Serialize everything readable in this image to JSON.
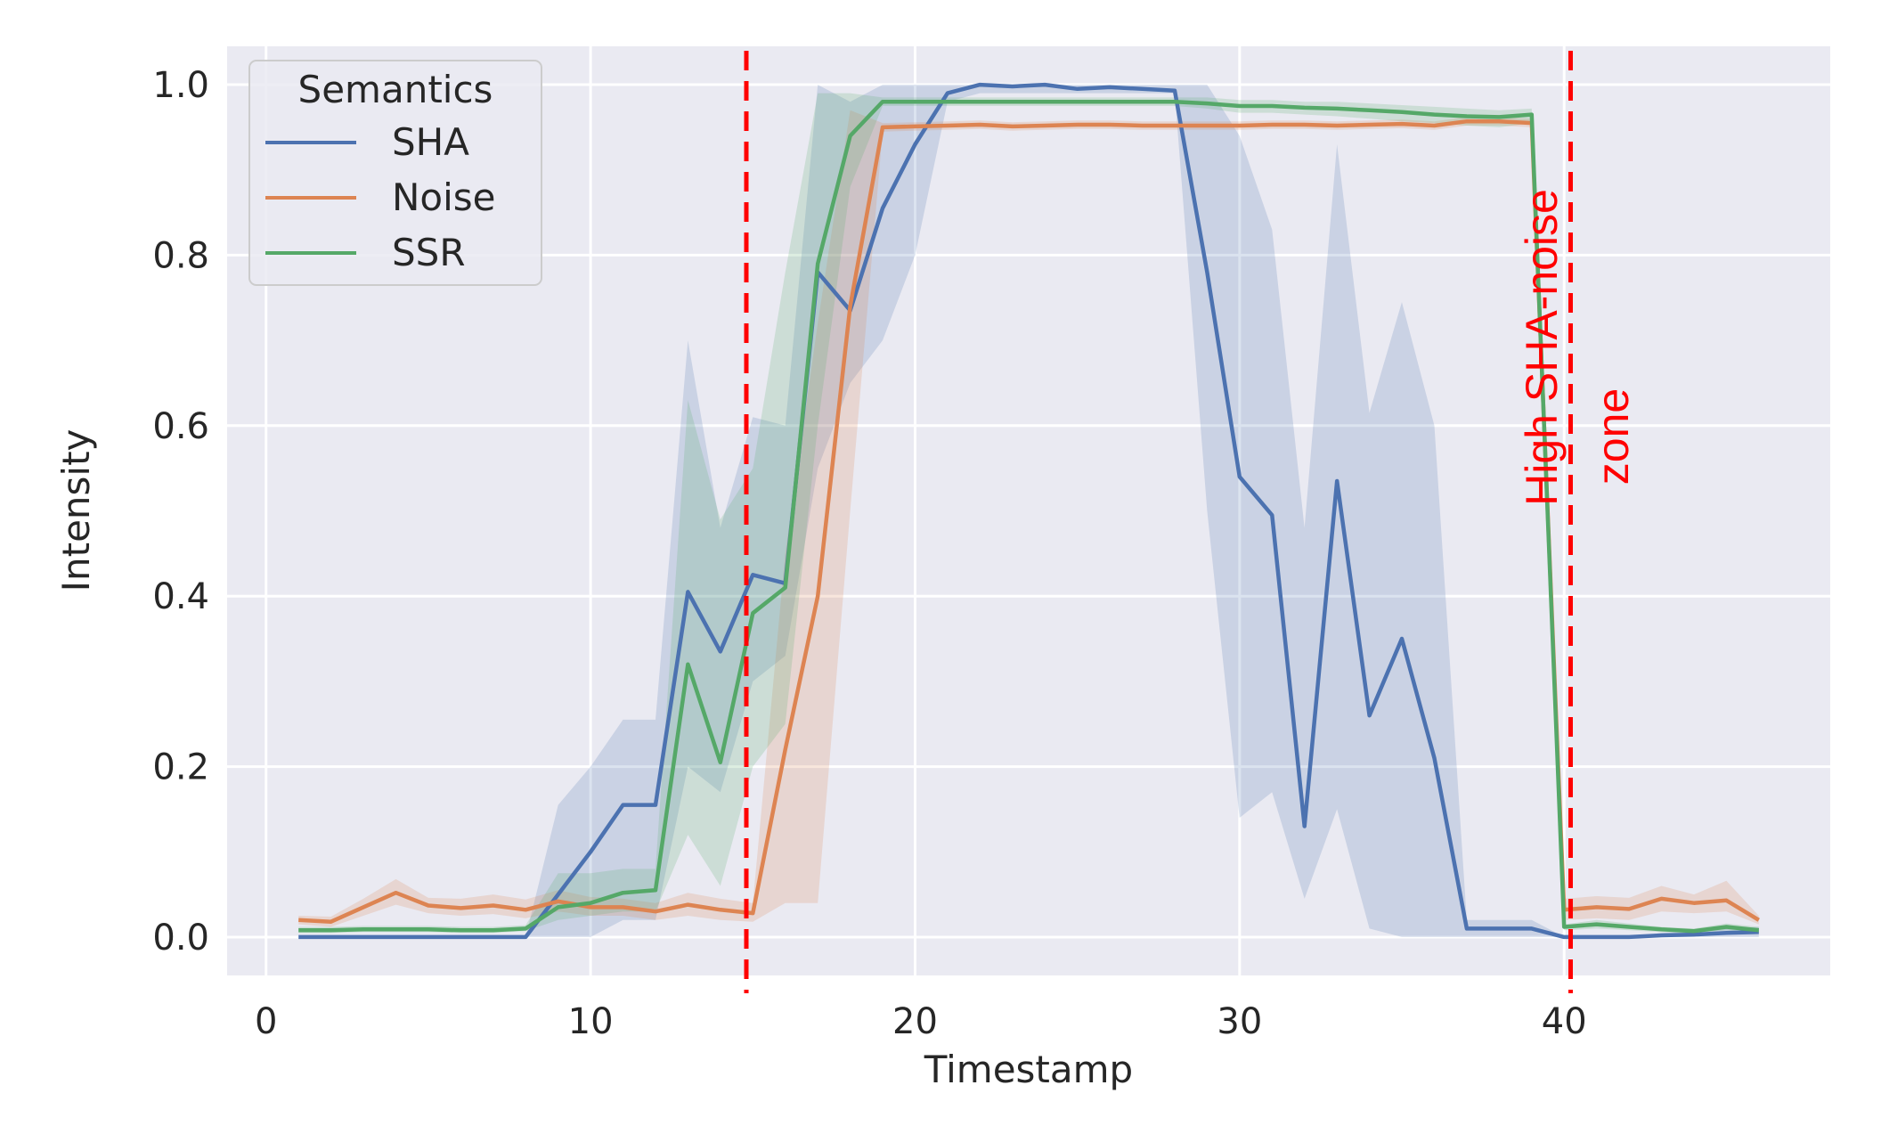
{
  "chart_data": {
    "type": "line",
    "title": "",
    "xlabel": "Timestamp",
    "ylabel": "Intensity",
    "xlim": [
      -1.2,
      48.2
    ],
    "ylim": [
      -0.045,
      1.045
    ],
    "x_ticks": [
      0,
      10,
      20,
      30,
      40
    ],
    "y_ticks": [
      0.0,
      0.2,
      0.4,
      0.6,
      0.8,
      1.0
    ],
    "x_tick_labels": [
      "0",
      "10",
      "20",
      "30",
      "40"
    ],
    "y_tick_labels": [
      "0.0",
      "0.2",
      "0.4",
      "0.6",
      "0.8",
      "1.0"
    ],
    "grid": true,
    "legend": {
      "title": "Semantics",
      "placement": "top-left"
    },
    "background_color": "#eaeaf2",
    "series": [
      {
        "name": "SHA",
        "color": "#4c72b0",
        "x": [
          1,
          2,
          3,
          4,
          5,
          6,
          7,
          8,
          9,
          10,
          11,
          12,
          13,
          14,
          15,
          16,
          17,
          18,
          19,
          20,
          21,
          22,
          23,
          24,
          25,
          26,
          27,
          28,
          29,
          30,
          31,
          32,
          33,
          34,
          35,
          36,
          37,
          38,
          39,
          40,
          41,
          42,
          43,
          44,
          45,
          46
        ],
        "y": [
          0.0,
          0.0,
          0.0,
          0.0,
          0.0,
          0.0,
          0.0,
          0.0,
          0.05,
          0.1,
          0.155,
          0.155,
          0.405,
          0.335,
          0.425,
          0.415,
          0.78,
          0.735,
          0.855,
          0.93,
          0.99,
          1.0,
          0.998,
          1.0,
          0.995,
          0.997,
          0.995,
          0.993,
          0.78,
          0.54,
          0.495,
          0.13,
          0.535,
          0.26,
          0.35,
          0.21,
          0.01,
          0.01,
          0.01,
          0.0,
          0.0,
          0.0,
          0.002,
          0.003,
          0.005,
          0.006
        ],
        "ci_lower": [
          0.0,
          0.0,
          0.0,
          0.0,
          0.0,
          0.0,
          0.0,
          0.0,
          0.0,
          0.0,
          0.02,
          0.02,
          0.2,
          0.17,
          0.3,
          0.33,
          0.55,
          0.65,
          0.7,
          0.8,
          0.98,
          0.99,
          0.99,
          0.99,
          0.99,
          0.99,
          0.99,
          0.99,
          0.5,
          0.14,
          0.17,
          0.045,
          0.15,
          0.01,
          0.0,
          0.0,
          0.0,
          0.0,
          0.0,
          0.0,
          0.0,
          0.0,
          0.0,
          0.0,
          0.0,
          0.0
        ],
        "ci_upper": [
          0.0,
          0.0,
          0.0,
          0.0,
          0.0,
          0.0,
          0.0,
          0.0,
          0.155,
          0.2,
          0.255,
          0.255,
          0.7,
          0.48,
          0.61,
          0.6,
          1.0,
          0.98,
          1.0,
          1.0,
          1.0,
          1.0,
          1.0,
          1.0,
          1.0,
          1.0,
          1.0,
          1.0,
          1.0,
          0.94,
          0.83,
          0.48,
          0.93,
          0.615,
          0.745,
          0.6,
          0.02,
          0.02,
          0.02,
          0.0,
          0.0,
          0.0,
          0.005,
          0.007,
          0.01,
          0.012
        ]
      },
      {
        "name": "Noise",
        "color": "#dd8452",
        "x": [
          1,
          2,
          3,
          4,
          5,
          6,
          7,
          8,
          9,
          10,
          11,
          12,
          13,
          14,
          15,
          16,
          17,
          18,
          19,
          20,
          21,
          22,
          23,
          24,
          25,
          26,
          27,
          28,
          29,
          30,
          31,
          32,
          33,
          34,
          35,
          36,
          37,
          38,
          39,
          40,
          41,
          42,
          43,
          44,
          45,
          46
        ],
        "y": [
          0.02,
          0.018,
          0.035,
          0.052,
          0.037,
          0.034,
          0.037,
          0.032,
          0.042,
          0.035,
          0.035,
          0.03,
          0.038,
          0.032,
          0.028,
          0.22,
          0.4,
          0.74,
          0.95,
          0.951,
          0.952,
          0.953,
          0.951,
          0.952,
          0.953,
          0.953,
          0.952,
          0.952,
          0.952,
          0.952,
          0.953,
          0.953,
          0.952,
          0.953,
          0.954,
          0.952,
          0.957,
          0.957,
          0.955,
          0.032,
          0.035,
          0.033,
          0.045,
          0.04,
          0.043,
          0.02
        ],
        "ci_lower": [
          0.015,
          0.012,
          0.025,
          0.038,
          0.028,
          0.025,
          0.027,
          0.022,
          0.03,
          0.025,
          0.025,
          0.02,
          0.025,
          0.02,
          0.018,
          0.04,
          0.04,
          0.5,
          0.945,
          0.946,
          0.947,
          0.948,
          0.946,
          0.947,
          0.948,
          0.948,
          0.947,
          0.947,
          0.947,
          0.947,
          0.948,
          0.948,
          0.947,
          0.948,
          0.949,
          0.947,
          0.952,
          0.952,
          0.95,
          0.02,
          0.022,
          0.02,
          0.03,
          0.028,
          0.03,
          0.015
        ],
        "ci_upper": [
          0.025,
          0.024,
          0.045,
          0.068,
          0.046,
          0.045,
          0.05,
          0.044,
          0.055,
          0.047,
          0.045,
          0.04,
          0.052,
          0.045,
          0.04,
          0.45,
          0.72,
          0.97,
          0.955,
          0.956,
          0.957,
          0.958,
          0.956,
          0.957,
          0.958,
          0.958,
          0.957,
          0.957,
          0.957,
          0.957,
          0.958,
          0.958,
          0.957,
          0.958,
          0.959,
          0.957,
          0.962,
          0.962,
          0.96,
          0.045,
          0.048,
          0.046,
          0.06,
          0.05,
          0.066,
          0.025
        ]
      },
      {
        "name": "SSR",
        "color": "#55a868",
        "x": [
          1,
          2,
          3,
          4,
          5,
          6,
          7,
          8,
          9,
          10,
          11,
          12,
          13,
          14,
          15,
          16,
          17,
          18,
          19,
          20,
          21,
          22,
          23,
          24,
          25,
          26,
          27,
          28,
          29,
          30,
          31,
          32,
          33,
          34,
          35,
          36,
          37,
          38,
          39,
          40,
          41,
          42,
          43,
          44,
          45,
          46
        ],
        "y": [
          0.008,
          0.008,
          0.009,
          0.009,
          0.009,
          0.008,
          0.008,
          0.01,
          0.035,
          0.04,
          0.052,
          0.055,
          0.32,
          0.205,
          0.38,
          0.41,
          0.79,
          0.94,
          0.98,
          0.98,
          0.98,
          0.98,
          0.98,
          0.98,
          0.98,
          0.98,
          0.98,
          0.98,
          0.978,
          0.975,
          0.975,
          0.973,
          0.972,
          0.97,
          0.968,
          0.965,
          0.963,
          0.962,
          0.965,
          0.012,
          0.015,
          0.012,
          0.009,
          0.007,
          0.012,
          0.008
        ],
        "ci_lower": [
          0.005,
          0.005,
          0.006,
          0.006,
          0.006,
          0.005,
          0.005,
          0.007,
          0.02,
          0.025,
          0.03,
          0.03,
          0.12,
          0.06,
          0.2,
          0.25,
          0.6,
          0.88,
          0.975,
          0.975,
          0.975,
          0.975,
          0.975,
          0.975,
          0.975,
          0.975,
          0.975,
          0.975,
          0.972,
          0.967,
          0.967,
          0.965,
          0.963,
          0.96,
          0.957,
          0.955,
          0.952,
          0.95,
          0.955,
          0.008,
          0.01,
          0.008,
          0.006,
          0.005,
          0.008,
          0.005
        ],
        "ci_upper": [
          0.012,
          0.012,
          0.013,
          0.013,
          0.013,
          0.012,
          0.012,
          0.014,
          0.075,
          0.075,
          0.08,
          0.08,
          0.63,
          0.49,
          0.55,
          0.78,
          0.99,
          0.99,
          0.985,
          0.985,
          0.985,
          0.985,
          0.985,
          0.985,
          0.985,
          0.985,
          0.985,
          0.985,
          0.985,
          0.982,
          0.982,
          0.98,
          0.98,
          0.978,
          0.976,
          0.974,
          0.972,
          0.97,
          0.972,
          0.015,
          0.02,
          0.016,
          0.012,
          0.01,
          0.016,
          0.012
        ]
      }
    ],
    "annotations": {
      "vlines": [
        {
          "x": 14.8,
          "color": "#ff0000",
          "style": "dashed"
        },
        {
          "x": 40.2,
          "color": "#ff0000",
          "style": "dashed"
        }
      ],
      "text": "High SHA-noise zone",
      "text_lines": [
        "High SHA-noise",
        "zone"
      ],
      "text_color": "#ff0000"
    }
  }
}
